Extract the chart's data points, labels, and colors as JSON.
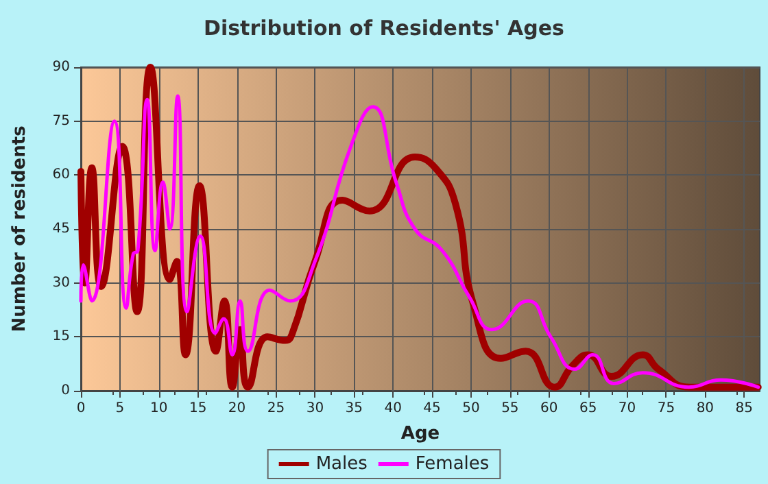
{
  "chart_data": {
    "type": "line",
    "title": "Distribution of Residents' Ages",
    "xlabel": "Age",
    "ylabel": "Number of residents",
    "xlim": [
      0,
      87
    ],
    "xticks": [
      0,
      5,
      10,
      15,
      20,
      25,
      30,
      35,
      40,
      45,
      50,
      55,
      60,
      65,
      70,
      75,
      80,
      85
    ],
    "ylim": [
      0,
      90
    ],
    "yticks": [
      0,
      15,
      30,
      45,
      60,
      75,
      90
    ],
    "grid": true,
    "legend": "bottom",
    "marker": "none",
    "line_style": "solid",
    "series": [
      {
        "name": "Males",
        "color": "#a00000",
        "x": [
          0,
          0.5,
          1.4,
          2.6,
          5.3,
          7.2,
          8.9,
          11.4,
          12.3,
          13.4,
          15.2,
          17.3,
          18.4,
          19.4,
          20.4,
          21.4,
          23.9,
          26.2,
          27.1,
          30,
          33.5,
          37,
          42.8,
          45.4,
          48,
          50.3,
          53.8,
          57,
          60.7,
          63,
          65,
          68,
          72,
          74,
          78,
          86.8
        ],
        "values": [
          61,
          30,
          62,
          29,
          68,
          22,
          90,
          31,
          36,
          10,
          57,
          11,
          25,
          1,
          17,
          1,
          15,
          14,
          16,
          36,
          53,
          50,
          65,
          62,
          52,
          24,
          9,
          11,
          1,
          7,
          10,
          4,
          10,
          6,
          1,
          1
        ]
      },
      {
        "name": "Females",
        "color": "#ff00ff",
        "x": [
          0,
          0.3,
          1.4,
          4.3,
          5.8,
          6.7,
          7.3,
          8.5,
          9.5,
          10.5,
          11.4,
          12.4,
          13.6,
          15.3,
          17.2,
          18.3,
          19.4,
          20.4,
          21.4,
          24.2,
          26.8,
          30,
          34.6,
          37.4,
          40.4,
          42.8,
          46.3,
          49.8,
          52.7,
          57.3,
          60.2,
          63.3,
          65.6,
          68.3,
          72,
          77.9,
          82,
          86.8
        ],
        "values": [
          25,
          35,
          25,
          75,
          23,
          38,
          39,
          81,
          39,
          58,
          45,
          82,
          22,
          43,
          16,
          20,
          10,
          25,
          11,
          28,
          25,
          36,
          68,
          79,
          58,
          45,
          39,
          26,
          17,
          25,
          15,
          6,
          10,
          2,
          5,
          1,
          3,
          1
        ]
      }
    ]
  }
}
